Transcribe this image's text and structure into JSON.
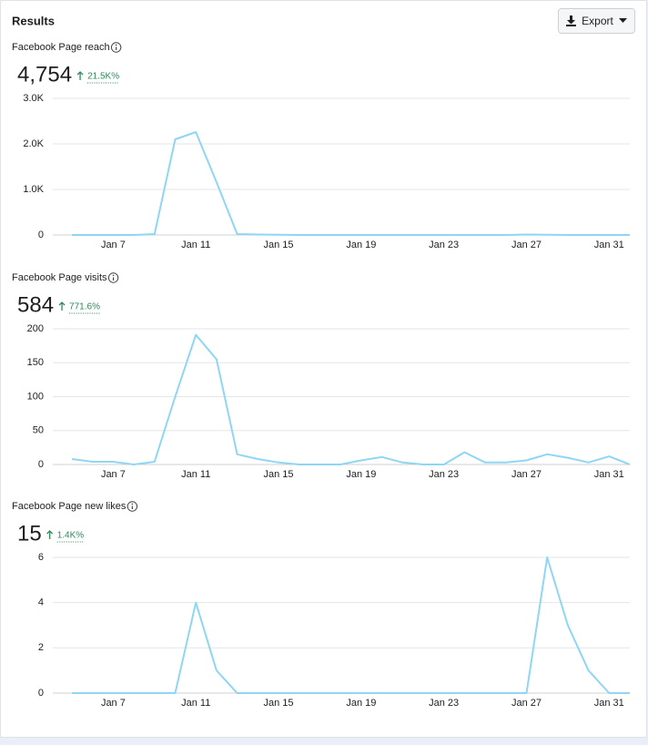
{
  "header": {
    "title": "Results",
    "export": "Export"
  },
  "chart_data": [
    {
      "type": "line",
      "title": "Facebook Page reach",
      "total": "4,754",
      "change": "21.5K%",
      "color": "#8fd6f5",
      "categories": [
        null,
        null,
        "Jan 7",
        null,
        null,
        null,
        "Jan 11",
        null,
        null,
        null,
        "Jan 15",
        null,
        null,
        null,
        "Jan 19",
        null,
        null,
        null,
        "Jan 23",
        null,
        null,
        null,
        "Jan 27",
        null,
        null,
        null,
        "Jan 31",
        null
      ],
      "values": [
        0,
        0,
        0,
        0,
        20,
        2100,
        2260,
        1160,
        20,
        10,
        5,
        0,
        0,
        0,
        0,
        0,
        0,
        0,
        0,
        0,
        0,
        0,
        10,
        5,
        0,
        0,
        0,
        0
      ],
      "ylim": [
        0,
        3000
      ],
      "yticks": [
        0,
        {
          "value": 1000,
          "label": "1.0K"
        },
        {
          "value": 2000,
          "label": "2.0K"
        },
        {
          "value": 3000,
          "label": "3.0K"
        }
      ],
      "grid": true
    },
    {
      "type": "line",
      "title": "Facebook Page visits",
      "total": "584",
      "change": "771.6%",
      "color": "#8fd6f5",
      "categories": [
        null,
        null,
        "Jan 7",
        null,
        null,
        null,
        "Jan 11",
        null,
        null,
        null,
        "Jan 15",
        null,
        null,
        null,
        "Jan 19",
        null,
        null,
        null,
        "Jan 23",
        null,
        null,
        null,
        "Jan 27",
        null,
        null,
        null,
        "Jan 31",
        null
      ],
      "values": [
        8,
        4,
        4,
        0,
        4,
        100,
        191,
        155,
        15,
        8,
        3,
        0,
        0,
        0,
        6,
        11,
        3,
        0,
        0,
        18,
        3,
        3,
        6,
        15,
        10,
        3,
        12,
        0
      ],
      "ylim": [
        0,
        200
      ],
      "yticks": [
        0,
        50,
        100,
        150,
        200
      ],
      "grid": true
    },
    {
      "type": "line",
      "title": "Facebook Page new likes",
      "total": "15",
      "change": "1.4K%",
      "color": "#8fd6f5",
      "categories": [
        null,
        null,
        "Jan 7",
        null,
        null,
        null,
        "Jan 11",
        null,
        null,
        null,
        "Jan 15",
        null,
        null,
        null,
        "Jan 19",
        null,
        null,
        null,
        "Jan 23",
        null,
        null,
        null,
        "Jan 27",
        null,
        null,
        null,
        "Jan 31",
        null
      ],
      "values": [
        0,
        0,
        0,
        0,
        0,
        0,
        4,
        1,
        0,
        0,
        0,
        0,
        0,
        0,
        0,
        0,
        0,
        0,
        0,
        0,
        0,
        0,
        0,
        6,
        3,
        1,
        0,
        0
      ],
      "ylim": [
        0,
        6
      ],
      "yticks": [
        0,
        2,
        4,
        6
      ],
      "grid": true
    }
  ]
}
